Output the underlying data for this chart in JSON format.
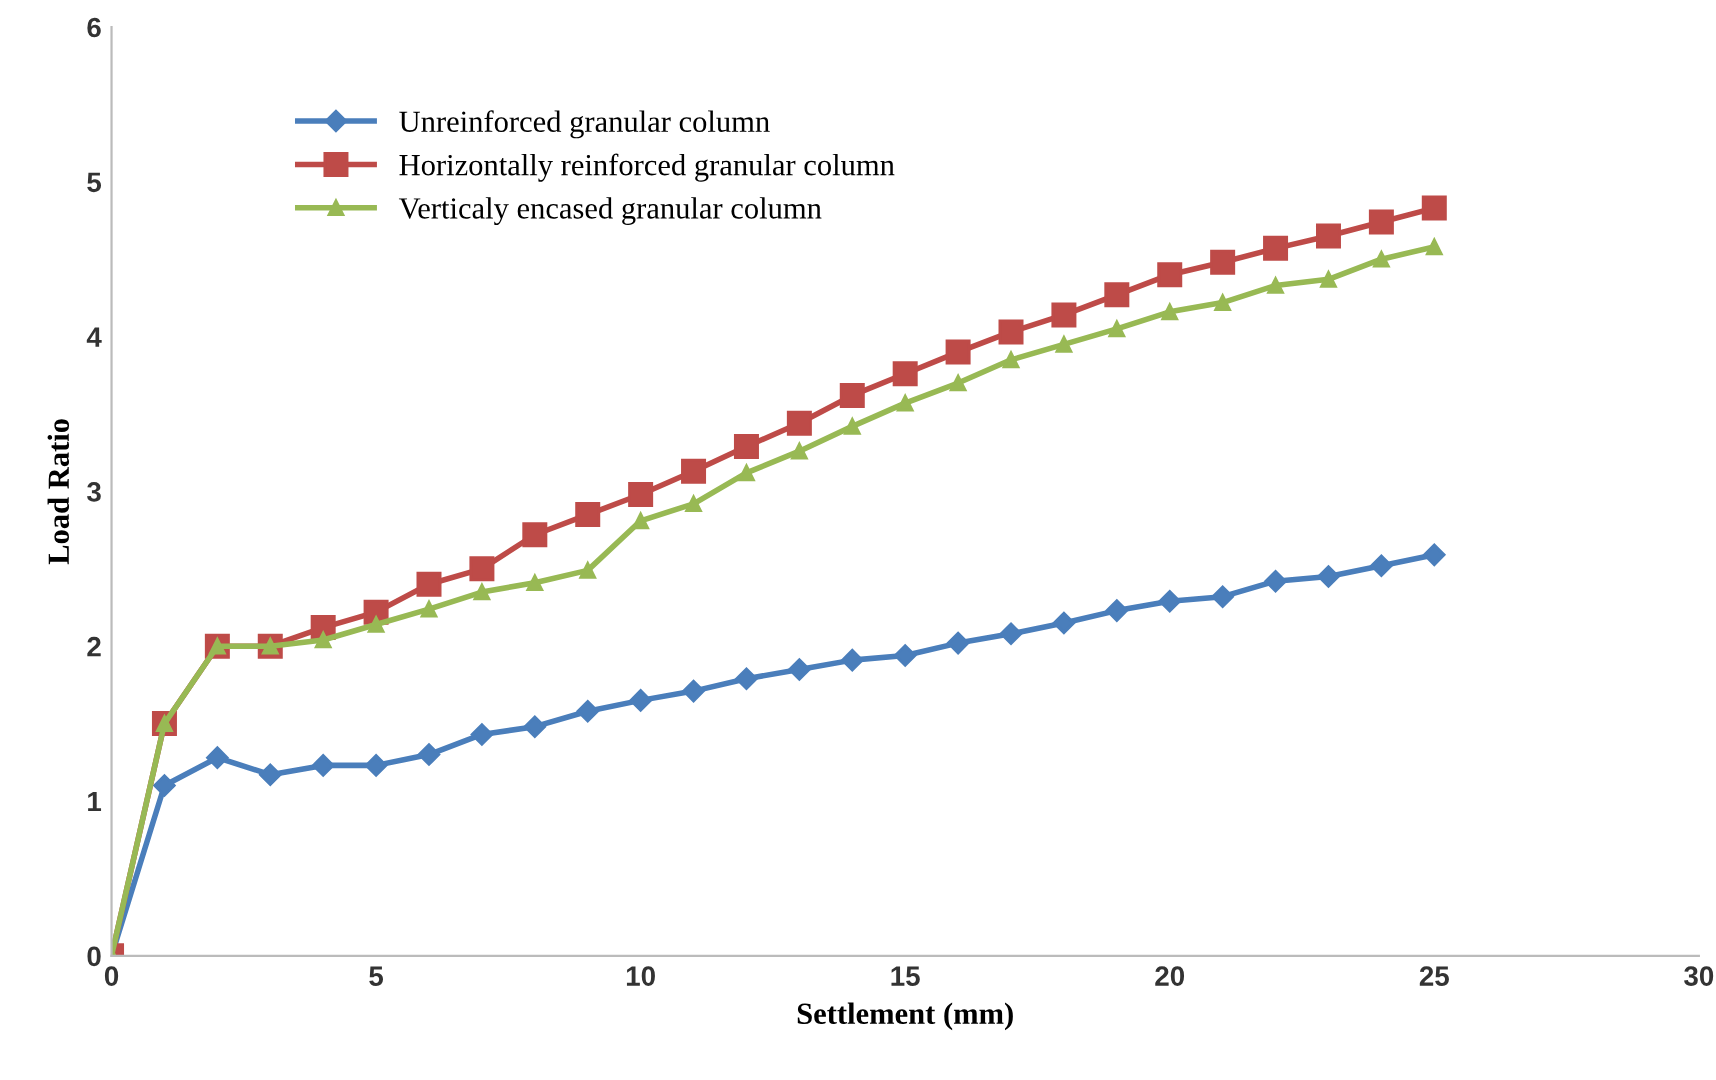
{
  "chart_data": {
    "type": "line",
    "xlabel": "Settlement (mm)",
    "ylabel": "Load Ratio",
    "x": [
      0,
      1,
      2,
      3,
      4,
      5,
      6,
      7,
      8,
      9,
      10,
      11,
      12,
      13,
      14,
      15,
      16,
      17,
      18,
      19,
      20,
      21,
      22,
      23,
      24,
      25
    ],
    "series": [
      {
        "name": "Unreinforced granular column",
        "color": "#4a7ebb",
        "marker": "diamond",
        "values": [
          0,
          1.1,
          1.28,
          1.17,
          1.23,
          1.23,
          1.3,
          1.43,
          1.48,
          1.58,
          1.65,
          1.71,
          1.79,
          1.85,
          1.91,
          1.94,
          2.02,
          2.08,
          2.15,
          2.23,
          2.29,
          2.32,
          2.42,
          2.45,
          2.52,
          2.59
        ]
      },
      {
        "name": "Horizontally reinforced granular column",
        "color": "#be4b48",
        "marker": "square",
        "values": [
          0,
          1.5,
          2.0,
          2.0,
          2.12,
          2.22,
          2.4,
          2.5,
          2.72,
          2.85,
          2.98,
          3.13,
          3.29,
          3.44,
          3.62,
          3.76,
          3.9,
          4.03,
          4.14,
          4.27,
          4.4,
          4.48,
          4.57,
          4.65,
          4.74,
          4.83
        ]
      },
      {
        "name": "Verticaly encased granular column",
        "color": "#98b954",
        "marker": "triangle",
        "values": [
          0,
          1.5,
          2.0,
          2.0,
          2.04,
          2.14,
          2.24,
          2.35,
          2.41,
          2.49,
          2.81,
          2.92,
          3.12,
          3.26,
          3.42,
          3.57,
          3.7,
          3.85,
          3.95,
          4.05,
          4.16,
          4.22,
          4.33,
          4.37,
          4.5,
          4.58
        ]
      }
    ],
    "xlim": [
      0,
      30
    ],
    "xticks": [
      0,
      5,
      10,
      15,
      20,
      25,
      30
    ],
    "ylim": [
      0,
      6
    ],
    "yticks": [
      0,
      1,
      2,
      3,
      4,
      5,
      6
    ],
    "grid": false,
    "legend": "top left",
    "line_style": "solid"
  }
}
